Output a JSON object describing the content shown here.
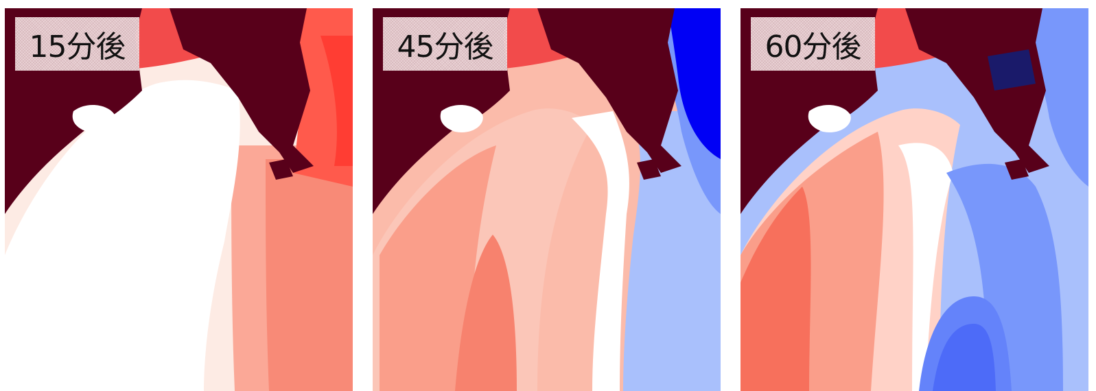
{
  "panels": [
    {
      "label": "15分後",
      "stage": 15
    },
    {
      "label": "45分後",
      "stage": 45
    },
    {
      "label": "60分後",
      "stage": 60
    }
  ],
  "colors": {
    "land": "#58001a",
    "neutral": "#ffffff",
    "rise_light": "#ffcfc4",
    "rise_mid": "#fa9e8a",
    "rise_strong": "#f7705c",
    "rise_max": "#ff3d33",
    "fall_light": "#a9c0fc",
    "fall_mid": "#7897fb",
    "fall_strong": "#4d6bf8",
    "fall_max": "#0000f5"
  }
}
